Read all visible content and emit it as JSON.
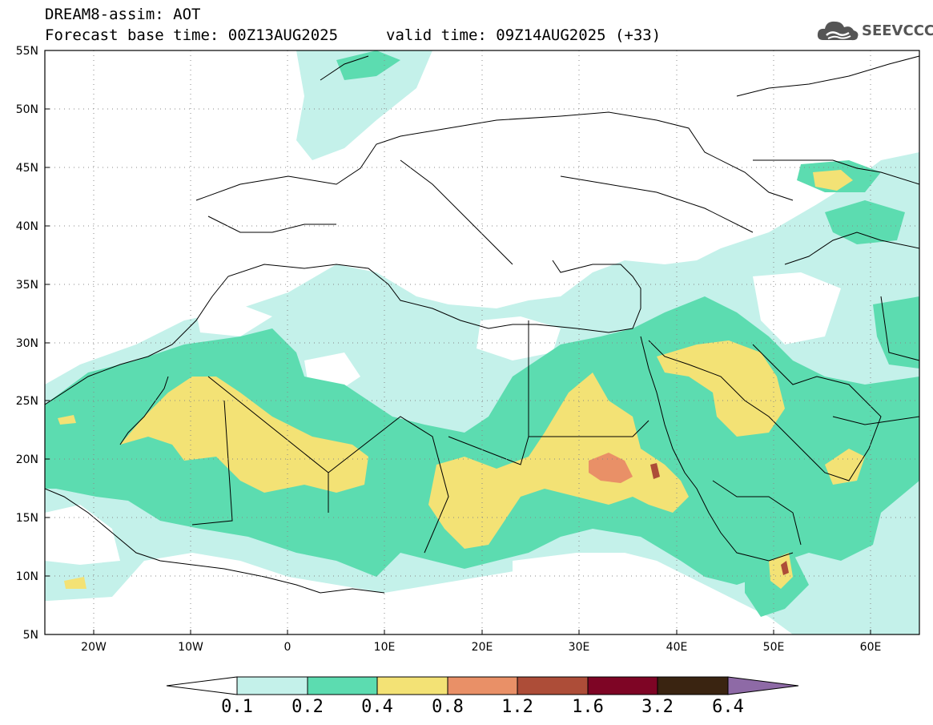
{
  "header": {
    "title": "DREAM8-assim: AOT",
    "base_time": "Forecast base time: 00Z13AUG2025",
    "valid_time": "valid time: 09Z14AUG2025 (+33)",
    "logo_text": "SEEVCCC",
    "logo_icon": "cloud-icon"
  },
  "map": {
    "lon_range": [
      -25,
      65
    ],
    "lat_range": [
      5,
      55
    ],
    "lat_ticks": [
      "55N",
      "50N",
      "45N",
      "40N",
      "35N",
      "30N",
      "25N",
      "20N",
      "15N",
      "10N",
      "5N"
    ],
    "lon_ticks": [
      "20W",
      "10W",
      "0",
      "10E",
      "20E",
      "30E",
      "40E",
      "50E",
      "60E"
    ],
    "grid": "dotted"
  },
  "colorbar": {
    "levels": [
      "0.1",
      "0.2",
      "0.4",
      "0.8",
      "1.2",
      "1.6",
      "3.2",
      "6.4"
    ],
    "colors": [
      "#ffffff",
      "#c4f1ea",
      "#5cdcb0",
      "#f3e275",
      "#e99067",
      "#ad4d38",
      "#7e0525",
      "#3a2411",
      "#8e6aa6"
    ]
  }
}
